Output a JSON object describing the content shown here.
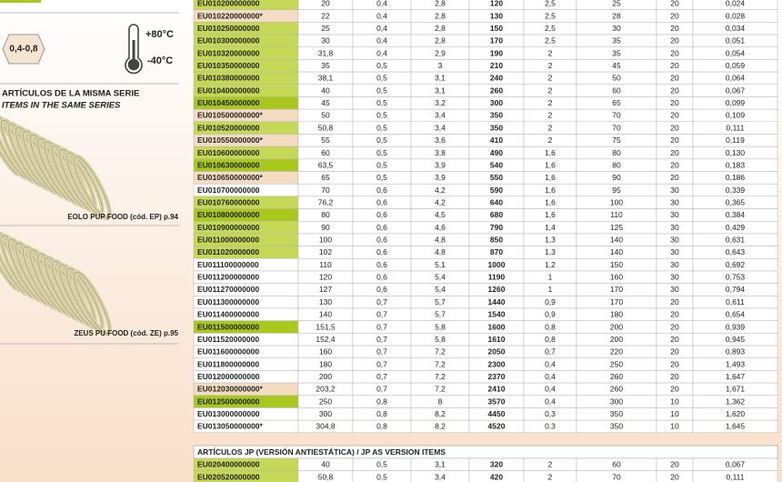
{
  "sidebar": {
    "pressure": "0,4-0,8",
    "temp_max": "+80°C",
    "temp_min": "-40°C",
    "related_title": "ARTÍCULOS DE LA MISMA SERIE",
    "related_subtitle": "ITEMS IN THE SAME SERIES",
    "related": [
      "EOLO PUP FOOD (cód. EP) p.94",
      "ZEUS PU FOOD (cód. ZE) p.95"
    ]
  },
  "table": {
    "rows": [
      [
        "EU010200000000",
        "20",
        "0,4",
        "2,8",
        "120",
        "2,5",
        "25",
        "20",
        "0,024"
      ],
      [
        "EU010220000000*",
        "22",
        "0,4",
        "2,8",
        "130",
        "2,5",
        "28",
        "20",
        "0,028"
      ],
      [
        "EU010250000000",
        "25",
        "0,4",
        "2,8",
        "150",
        "2,5",
        "30",
        "20",
        "0,034"
      ],
      [
        "EU010300000000",
        "30",
        "0,4",
        "2,8",
        "170",
        "2,5",
        "35",
        "20",
        "0,051"
      ],
      [
        "EU010320000000",
        "31,8",
        "0,4",
        "2,9",
        "190",
        "2",
        "35",
        "20",
        "0,054"
      ],
      [
        "EU010350000000",
        "35",
        "0,5",
        "3",
        "210",
        "2",
        "45",
        "20",
        "0,059"
      ],
      [
        "EU010380000000",
        "38,1",
        "0,5",
        "3,1",
        "240",
        "2",
        "50",
        "20",
        "0,064"
      ],
      [
        "EU010400000000",
        "40",
        "0,5",
        "3,1",
        "260",
        "2",
        "60",
        "20",
        "0,067"
      ],
      [
        "EU010450000000",
        "45",
        "0,5",
        "3,2",
        "300",
        "2",
        "65",
        "20",
        "0,099"
      ],
      [
        "EU010500000000*",
        "50",
        "0,5",
        "3,4",
        "350",
        "2",
        "70",
        "20",
        "0,109"
      ],
      [
        "EU010520000000",
        "50,8",
        "0,5",
        "3,4",
        "350",
        "2",
        "70",
        "20",
        "0,111"
      ],
      [
        "EU010550000000*",
        "55",
        "0,5",
        "3,6",
        "410",
        "2",
        "75",
        "20",
        "0,119"
      ],
      [
        "EU010600000000",
        "60",
        "0,5",
        "3,8",
        "490",
        "1,6",
        "80",
        "20",
        "0,130"
      ],
      [
        "EU010630000000",
        "63,5",
        "0,5",
        "3,9",
        "540",
        "1,6",
        "80",
        "20",
        "0,183"
      ],
      [
        "EU010650000000*",
        "65",
        "0,5",
        "3,9",
        "550",
        "1,6",
        "90",
        "20",
        "0,186"
      ],
      [
        "EU010700000000",
        "70",
        "0,6",
        "4,2",
        "590",
        "1,6",
        "95",
        "30",
        "0,339"
      ],
      [
        "EU010760000000",
        "76,2",
        "0,6",
        "4,2",
        "640",
        "1,6",
        "100",
        "30",
        "0,365"
      ],
      [
        "EU010800000000",
        "80",
        "0,6",
        "4,5",
        "680",
        "1,6",
        "110",
        "30",
        "0,384"
      ],
      [
        "EU010900000000",
        "90",
        "0,6",
        "4,6",
        "790",
        "1,4",
        "125",
        "30",
        "0,429"
      ],
      [
        "EU011000000000",
        "100",
        "0,6",
        "4,8",
        "850",
        "1,3",
        "140",
        "30",
        "0,631"
      ],
      [
        "EU011020000000",
        "102",
        "0,6",
        "4,8",
        "870",
        "1,3",
        "140",
        "30",
        "0,643"
      ],
      [
        "EU011100000000",
        "110",
        "0,6",
        "5,1",
        "1000",
        "1,2",
        "150",
        "30",
        "0,692"
      ],
      [
        "EU011200000000",
        "120",
        "0,6",
        "5,4",
        "1190",
        "1",
        "160",
        "30",
        "0,753"
      ],
      [
        "EU011270000000",
        "127",
        "0,6",
        "5,4",
        "1260",
        "1",
        "170",
        "30",
        "0,794"
      ],
      [
        "EU011300000000",
        "130",
        "0,7",
        "5,7",
        "1440",
        "0,9",
        "170",
        "20",
        "0,611"
      ],
      [
        "EU011400000000",
        "140",
        "0,7",
        "5,7",
        "1540",
        "0,9",
        "180",
        "20",
        "0,654"
      ],
      [
        "EU011500000000",
        "151,5",
        "0,7",
        "5,8",
        "1600",
        "0,8",
        "200",
        "20",
        "0,939"
      ],
      [
        "EU011520000000",
        "152,4",
        "0,7",
        "5,8",
        "1610",
        "0,8",
        "200",
        "20",
        "0,945"
      ],
      [
        "EU011600000000",
        "160",
        "0,7",
        "7,2",
        "2050",
        "0,7",
        "220",
        "20",
        "0,893"
      ],
      [
        "EU011800000000",
        "180",
        "0,7",
        "7,2",
        "2300",
        "0,4",
        "250",
        "20",
        "1,493"
      ],
      [
        "EU012000000000",
        "200",
        "0,7",
        "7,2",
        "2370",
        "0,4",
        "260",
        "20",
        "1,647"
      ],
      [
        "EU012030000000*",
        "203,2",
        "0,7",
        "7,2",
        "2410",
        "0,4",
        "260",
        "20",
        "1,671"
      ],
      [
        "EU012500000000",
        "250",
        "0,8",
        "8",
        "3570",
        "0,4",
        "300",
        "10",
        "1,362"
      ],
      [
        "EU013000000000",
        "300",
        "0,8",
        "8,2",
        "4450",
        "0,3",
        "350",
        "10",
        "1,620"
      ],
      [
        "EU013050000000*",
        "304,8",
        "0,8",
        "8,2",
        "4520",
        "0,3",
        "350",
        "10",
        "1,645"
      ]
    ],
    "row_colors": [
      "#c6d957",
      "#f4dcc2",
      "#c6d957",
      "#c6d957",
      "#c6d957",
      "#c6d957",
      "#c6d957",
      "#c6d957",
      "#a9c81e",
      "#f4dcc2",
      "#c6d957",
      "#f4dcc2",
      "#c6d957",
      "#a9c81e",
      "#f4dcc2",
      "#ffffff",
      "#c6d957",
      "#a9c81e",
      "#c6d957",
      "#c6d957",
      "#c6d957",
      "#ffffff",
      "#ffffff",
      "#ffffff",
      "#ffffff",
      "#ffffff",
      "#a9c81e",
      "#ffffff",
      "#ffffff",
      "#ffffff",
      "#ffffff",
      "#f4dcc2",
      "#a9c81e",
      "#ffffff",
      "#ffffff"
    ]
  },
  "jp_table": {
    "title": "ARTÍCULOS JP (VERSIÓN ANTIESTÁTICA) / JP AS VERSION ITEMS",
    "rows": [
      [
        "EU020400000000",
        "40",
        "0,5",
        "3,1",
        "320",
        "2",
        "60",
        "20",
        "0,067"
      ],
      [
        "EU020520000000",
        "50,8",
        "0,5",
        "3,4",
        "420",
        "2",
        "70",
        "20",
        "0,111"
      ]
    ],
    "row_colors": [
      "#c6d957",
      "#c6d957"
    ]
  }
}
